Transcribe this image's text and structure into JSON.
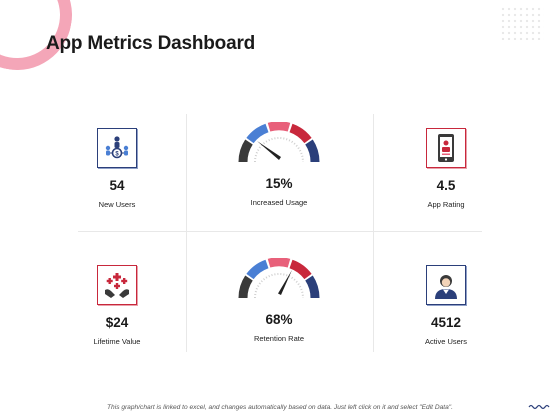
{
  "title": "App Metrics Dashboard",
  "metrics": [
    {
      "value": "54",
      "label": "New Users",
      "icon": "users-network-icon"
    },
    {
      "value": "15%",
      "label": "Increased Usage",
      "icon": "gauge-icon"
    },
    {
      "value": "4.5",
      "label": "App Rating",
      "icon": "mobile-phone-icon"
    },
    {
      "value": "$24",
      "label": "Lifetime Value",
      "icon": "hand-care-icon"
    },
    {
      "value": "68%",
      "label": "Retention Rate",
      "icon": "gauge-icon"
    },
    {
      "value": "4512",
      "label": "Active Users",
      "icon": "user-avatar-icon"
    }
  ],
  "footer": "This graph/chart is linked to excel, and changes automatically based on data. Just left click on it and select \"Edit Data\".",
  "colors": {
    "blue": "#2b3f7a",
    "light_blue": "#4a7fd4",
    "red": "#c8283c",
    "pink": "#e8607a",
    "dark": "#3a3a3a"
  }
}
